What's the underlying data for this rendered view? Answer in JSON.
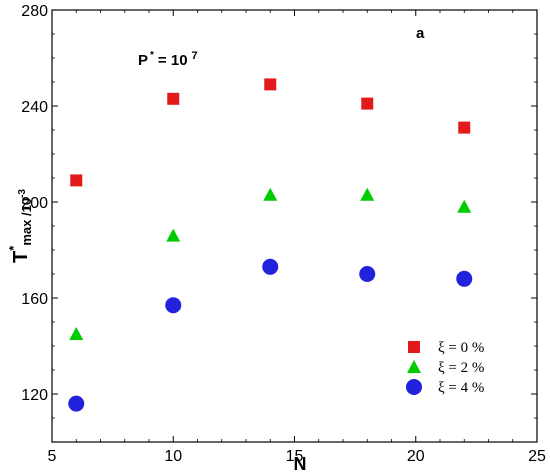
{
  "chart_data": {
    "type": "scatter",
    "xlabel": "N",
    "ylabel_main": "T",
    "ylabel_sup": "*",
    "ylabel_sub": "max /10",
    "ylabel_sub_sup": "-3",
    "xlim": [
      5,
      25
    ],
    "ylim": [
      100,
      280
    ],
    "xticks": [
      5,
      10,
      15,
      20,
      25
    ],
    "yticks": [
      120,
      160,
      200,
      240,
      280
    ],
    "grid": false,
    "legend_position": "bottom-right",
    "annotation_param_main": "P",
    "annotation_param_sup": "*",
    "annotation_param_value": "= 10",
    "annotation_param_exp": "7",
    "panel_label": "a",
    "series": [
      {
        "name": "ξ = 0 %",
        "marker": "square",
        "color": "#e31a1c",
        "x": [
          6,
          10,
          14,
          18,
          22
        ],
        "y": [
          209,
          243,
          249,
          241,
          231
        ]
      },
      {
        "name": "ξ = 2 %",
        "marker": "triangle",
        "color": "#00cc00",
        "x": [
          6,
          10,
          14,
          18,
          22
        ],
        "y": [
          145,
          186,
          203,
          203,
          198
        ]
      },
      {
        "name": "ξ = 4 %",
        "marker": "circle",
        "color": "#2222dd",
        "x": [
          6,
          10,
          14,
          18,
          22
        ],
        "y": [
          116,
          157,
          173,
          170,
          168
        ]
      }
    ]
  }
}
